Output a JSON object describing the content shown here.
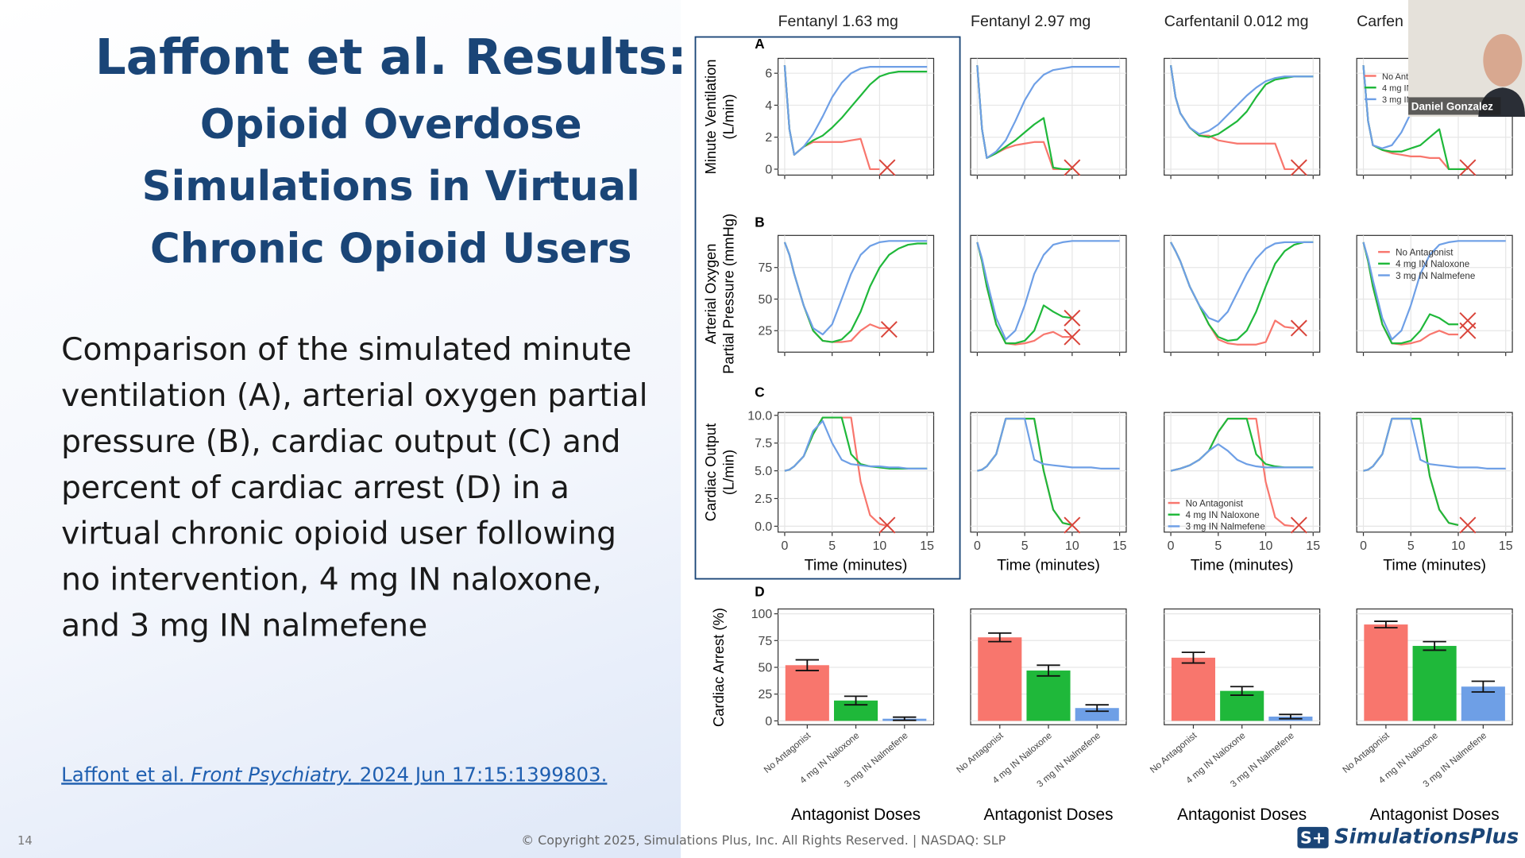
{
  "slide": {
    "title": "Laffont et al. Results:",
    "subtitle_lines": [
      "Opioid Overdose",
      "Simulations in Virtual",
      "Chronic Opioid Users"
    ],
    "body_lines": [
      "Comparison of the simulated minute",
      "ventilation (A), arterial oxygen partial",
      "pressure (B), cardiac output (C) and",
      "percent of cardiac arrest (D) in a",
      "virtual chronic opioid user following",
      "no intervention, 4 mg IN naloxone,",
      "and 3 mg IN nalmefene"
    ],
    "citation": {
      "authors": "Laffont et al.",
      "journal": "Front Psychiatry.",
      "details": "2024 Jun 17:15:1399803."
    },
    "page_number": "14",
    "copyright": "© Copyright 2025, Simulations Plus, Inc. All Rights Reserved. | NASDAQ: SLP",
    "logo": "SimulationsPlus"
  },
  "webcam": {
    "name": "Daniel Gonzalez"
  },
  "figure": {
    "x": [
      0,
      0.5,
      1,
      2,
      3,
      4,
      5,
      6,
      7,
      8,
      9,
      10,
      11,
      12,
      13,
      14,
      15
    ],
    "xlim": [
      -0.7,
      15.7
    ],
    "xticks": [
      0,
      5,
      10,
      15
    ],
    "xlabel": "Time (minutes)",
    "series_names": [
      "No Antagonist",
      "4 mg IN Naloxone",
      "3 mg IN Nalmefene"
    ],
    "colors": [
      "#f8766d",
      "#1fb83a",
      "#6e9fe6"
    ],
    "grid": true,
    "rows": [
      {
        "letter": "A",
        "ylabel": [
          "Minute Ventilation",
          "(L/min)"
        ],
        "ylim": [
          -0.37,
          6.93
        ],
        "yticks": [
          0,
          2,
          4,
          6
        ]
      },
      {
        "letter": "B",
        "ylabel": [
          "Arterial Oxygen",
          "Partial Pressure (mmHg)"
        ],
        "ylim": [
          8,
          100.4
        ],
        "yticks": [
          25,
          50,
          75
        ]
      },
      {
        "letter": "C",
        "ylabel": [
          "Cardiac Output",
          "(L/min)"
        ],
        "ylim": [
          -0.53,
          10.26
        ],
        "yticks": [
          {
            "value": 0,
            "label": "0.0"
          },
          2.5,
          {
            "value": 5,
            "label": "5.0"
          },
          7.5,
          {
            "value": 10,
            "label": "10.0"
          }
        ]
      }
    ],
    "bar_row": {
      "letter": "D",
      "ylabel": "Cardiac Arrest (%)",
      "ylim": [
        -3.6,
        104.5
      ],
      "yticks": [
        0,
        25,
        50,
        75,
        100
      ],
      "xlabel": "Antagonist Doses"
    },
    "columns": [
      {
        "title": "Fentanyl 1.63 mg",
        "panels": [
          {
            "values": [
              [
                6.5,
                2.5,
                0.9,
                1.4,
                1.7,
                1.7,
                1.7,
                1.7,
                1.8,
                1.9,
                0,
                0,
                null,
                null,
                null,
                null,
                null
              ],
              [
                6.5,
                2.5,
                0.9,
                1.4,
                1.8,
                2.1,
                2.6,
                3.2,
                3.9,
                4.6,
                5.3,
                5.8,
                6.0,
                6.1,
                6.1,
                6.1,
                6.1
              ],
              [
                6.5,
                2.5,
                0.9,
                1.4,
                2.2,
                3.3,
                4.5,
                5.4,
                6.0,
                6.3,
                6.4,
                6.4,
                6.4,
                6.4,
                6.4,
                6.4,
                6.4
              ]
            ],
            "markers": [
              [
                10.8,
                0.1
              ]
            ]
          },
          {
            "values": [
              [
                95,
                85,
                70,
                45,
                25,
                17,
                16,
                16,
                17,
                25,
                30,
                27,
                27,
                null,
                null,
                null,
                null
              ],
              [
                95,
                85,
                70,
                45,
                25,
                17,
                16,
                18,
                25,
                40,
                60,
                75,
                85,
                90,
                93,
                94,
                94
              ],
              [
                95,
                85,
                70,
                45,
                27,
                22,
                30,
                50,
                70,
                85,
                92,
                95,
                96,
                96,
                96,
                96,
                96
              ]
            ],
            "markers": [
              [
                11,
                26
              ]
            ]
          },
          {
            "values": [
              [
                5.0,
                5.1,
                5.4,
                6.3,
                8.3,
                9.8,
                9.8,
                9.8,
                9.8,
                4.0,
                1.0,
                0.2,
                0,
                null,
                null,
                null,
                null
              ],
              [
                5.0,
                5.1,
                5.4,
                6.3,
                8.3,
                9.8,
                9.8,
                9.8,
                6.5,
                5.6,
                5.4,
                5.3,
                5.2,
                5.2,
                5.2,
                5.2,
                5.2
              ],
              [
                5.0,
                5.1,
                5.4,
                6.3,
                8.6,
                9.5,
                7.5,
                6.0,
                5.6,
                5.5,
                5.4,
                5.4,
                5.3,
                5.3,
                5.2,
                5.2,
                5.2
              ]
            ],
            "markers": [
              [
                10.8,
                0.1
              ]
            ]
          }
        ],
        "bars": {
          "values": [
            52,
            19,
            2
          ],
          "errors": [
            5,
            4,
            1.5
          ]
        }
      },
      {
        "title": "Fentanyl 2.97 mg",
        "panels": [
          {
            "values": [
              [
                6.5,
                2.5,
                0.7,
                1.0,
                1.3,
                1.5,
                1.6,
                1.7,
                1.7,
                0,
                0,
                0,
                null,
                null,
                null,
                null,
                null
              ],
              [
                6.5,
                2.5,
                0.7,
                1.0,
                1.4,
                1.8,
                2.3,
                2.8,
                3.2,
                0.1,
                0,
                0,
                null,
                null,
                null,
                null,
                null
              ],
              [
                6.5,
                2.5,
                0.7,
                1.1,
                1.8,
                3.0,
                4.3,
                5.3,
                5.9,
                6.2,
                6.3,
                6.4,
                6.4,
                6.4,
                6.4,
                6.4,
                6.4
              ]
            ],
            "markers": [
              [
                10,
                0.1
              ]
            ]
          },
          {
            "values": [
              [
                95,
                80,
                60,
                30,
                15,
                14,
                15,
                17,
                22,
                24,
                20,
                20,
                null,
                null,
                null,
                null,
                null
              ],
              [
                95,
                80,
                60,
                30,
                15,
                15,
                17,
                25,
                45,
                40,
                36,
                35,
                null,
                null,
                null,
                null,
                null
              ],
              [
                95,
                82,
                65,
                35,
                18,
                25,
                45,
                70,
                85,
                93,
                95,
                96,
                96,
                96,
                96,
                96,
                96
              ]
            ],
            "markers": [
              [
                10,
                35
              ],
              [
                10,
                20
              ]
            ]
          },
          {
            "values": [
              [
                5,
                5.1,
                5.4,
                6.5,
                9.7,
                9.7,
                9.7,
                9.7,
                5.0,
                1.5,
                0.3,
                0.1,
                null,
                null,
                null,
                null,
                null
              ],
              [
                5,
                5.1,
                5.4,
                6.5,
                9.7,
                9.7,
                9.7,
                9.7,
                5.0,
                1.5,
                0.3,
                0.1,
                null,
                null,
                null,
                null,
                null
              ],
              [
                5,
                5.1,
                5.4,
                6.5,
                9.7,
                9.7,
                9.7,
                6.0,
                5.6,
                5.5,
                5.4,
                5.3,
                5.3,
                5.3,
                5.2,
                5.2,
                5.2
              ]
            ],
            "markers": [
              [
                10,
                0.1
              ]
            ]
          }
        ],
        "bars": {
          "values": [
            78,
            47,
            12
          ],
          "errors": [
            4,
            5,
            3
          ]
        }
      },
      {
        "title": "Carfentanil 0.012 mg",
        "panels": [
          {
            "values": [
              [
                6.5,
                4.5,
                3.5,
                2.6,
                2.1,
                2.1,
                1.8,
                1.7,
                1.6,
                1.6,
                1.6,
                1.6,
                1.6,
                0,
                0,
                null,
                null
              ],
              [
                6.5,
                4.5,
                3.5,
                2.6,
                2.1,
                2.0,
                2.2,
                2.6,
                3.0,
                3.6,
                4.5,
                5.3,
                5.6,
                5.7,
                5.8,
                5.8,
                5.8
              ],
              [
                6.5,
                4.5,
                3.5,
                2.6,
                2.2,
                2.4,
                2.8,
                3.4,
                4.0,
                4.6,
                5.1,
                5.5,
                5.7,
                5.8,
                5.8,
                5.8,
                5.8
              ]
            ],
            "markers": [
              [
                13.5,
                0.1
              ]
            ]
          },
          {
            "values": [
              [
                95,
                88,
                80,
                60,
                45,
                30,
                18,
                15,
                14,
                14,
                14,
                16,
                33,
                28,
                27,
                null,
                null
              ],
              [
                95,
                88,
                80,
                60,
                45,
                30,
                20,
                17,
                18,
                25,
                40,
                60,
                78,
                88,
                93,
                95,
                95
              ],
              [
                95,
                88,
                80,
                60,
                45,
                35,
                32,
                40,
                55,
                70,
                82,
                90,
                94,
                95,
                95,
                95,
                95
              ]
            ],
            "markers": [
              [
                13.5,
                27
              ]
            ]
          },
          {
            "values": [
              [
                5,
                5.1,
                5.2,
                5.5,
                6,
                6.8,
                8.5,
                9.7,
                9.7,
                9.7,
                9.7,
                4,
                0.8,
                0.1,
                0,
                null,
                null
              ],
              [
                5,
                5.1,
                5.2,
                5.5,
                6,
                6.8,
                8.5,
                9.7,
                9.7,
                9.7,
                6.5,
                5.6,
                5.4,
                5.3,
                5.3,
                5.3,
                5.3
              ],
              [
                5,
                5.1,
                5.2,
                5.5,
                6,
                6.8,
                7.4,
                6.8,
                6.0,
                5.6,
                5.4,
                5.3,
                5.3,
                5.3,
                5.3,
                5.3,
                5.3
              ]
            ],
            "markers": [
              [
                13.5,
                0.1
              ]
            ],
            "legend": "bottom-left"
          }
        ],
        "bars": {
          "values": [
            59,
            28,
            4
          ],
          "errors": [
            5,
            4,
            2
          ]
        }
      },
      {
        "title": "Carfen",
        "panels": [
          {
            "values": [
              [
                6.5,
                3,
                1.5,
                1.2,
                1.0,
                0.9,
                0.8,
                0.8,
                0.7,
                0.7,
                0,
                0,
                0,
                null,
                null,
                null,
                null
              ],
              [
                6.5,
                3,
                1.5,
                1.2,
                1.1,
                1.1,
                1.3,
                1.5,
                2.0,
                2.5,
                0,
                0,
                0,
                null,
                null,
                null,
                null
              ],
              [
                6.5,
                3,
                1.5,
                1.3,
                1.5,
                2.3,
                3.5,
                4.8,
                5.6,
                6.0,
                6.2,
                6.3,
                6.3,
                6.3,
                6.3,
                6.3,
                6.3
              ]
            ],
            "markers": [
              [
                11,
                0.1
              ]
            ],
            "legend": "top-left"
          },
          {
            "values": [
              [
                95,
                80,
                60,
                30,
                15,
                14,
                15,
                17,
                22,
                25,
                22,
                22,
                null,
                null,
                null,
                null,
                null
              ],
              [
                95,
                80,
                60,
                30,
                15,
                15,
                17,
                25,
                38,
                35,
                30,
                30,
                null,
                null,
                null,
                null,
                null
              ],
              [
                95,
                82,
                65,
                35,
                18,
                25,
                45,
                70,
                85,
                93,
                95,
                96,
                96,
                96,
                96,
                96,
                96
              ]
            ],
            "markers": [
              [
                11,
                33
              ],
              [
                11,
                25
              ]
            ],
            "legend": "top-right"
          },
          {
            "values": [
              [
                5,
                5.1,
                5.4,
                6.5,
                9.7,
                9.7,
                9.7,
                9.7,
                4.5,
                1.5,
                0.3,
                0.1,
                null,
                null,
                null,
                null,
                null
              ],
              [
                5,
                5.1,
                5.4,
                6.5,
                9.7,
                9.7,
                9.7,
                9.7,
                4.5,
                1.5,
                0.3,
                0.1,
                null,
                null,
                null,
                null,
                null
              ],
              [
                5,
                5.1,
                5.4,
                6.5,
                9.7,
                9.7,
                9.7,
                6.0,
                5.6,
                5.5,
                5.4,
                5.3,
                5.3,
                5.3,
                5.2,
                5.2,
                5.2
              ]
            ],
            "markers": [
              [
                11,
                0.1
              ]
            ]
          }
        ],
        "bars": {
          "values": [
            90,
            70,
            32
          ],
          "errors": [
            3,
            4,
            5
          ]
        }
      }
    ]
  }
}
